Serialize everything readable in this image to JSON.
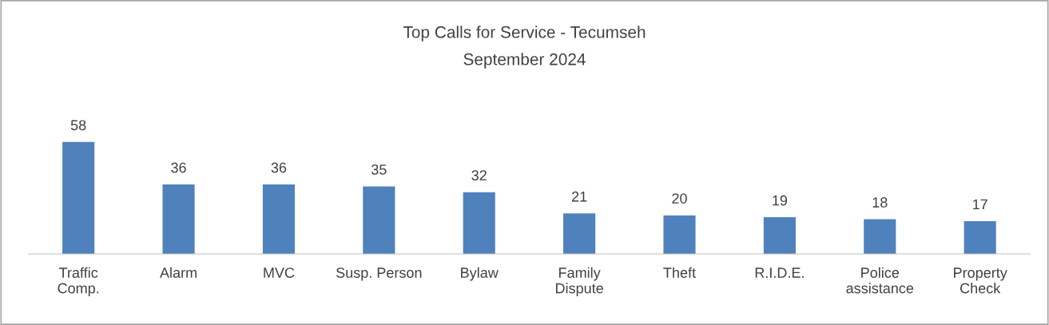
{
  "chart_data": {
    "type": "bar",
    "title": "Top Calls for Service - Tecumseh",
    "subtitle": "September 2024",
    "categories": [
      "Traffic\nComp.",
      "Alarm",
      "MVC",
      "Susp. Person",
      "Bylaw",
      "Family\nDispute",
      "Theft",
      "R.I.D.E.",
      "Police\nassistance",
      "Property\nCheck"
    ],
    "values": [
      58,
      36,
      36,
      35,
      32,
      21,
      20,
      19,
      18,
      17
    ],
    "color": "#4f81bd",
    "data_labels": true,
    "grid": false,
    "legend": false
  }
}
